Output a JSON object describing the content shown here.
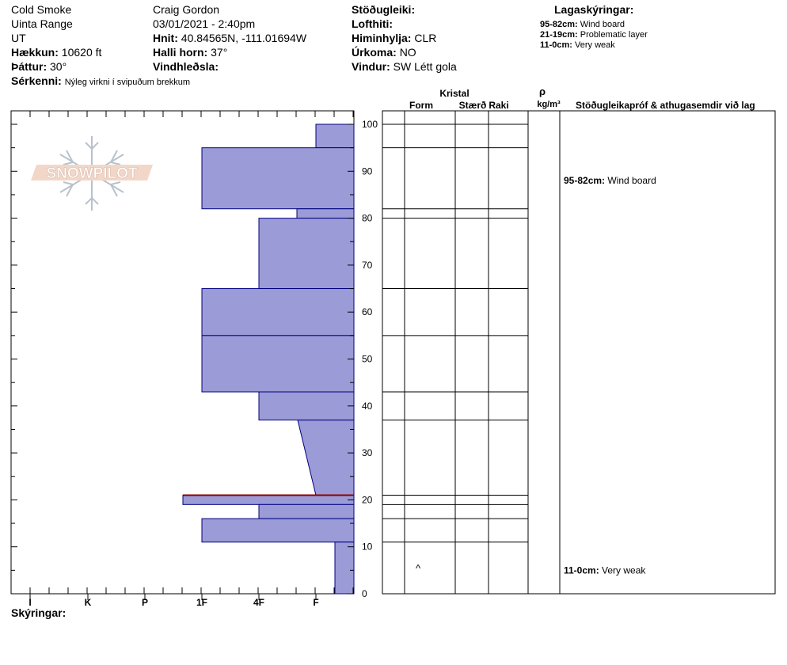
{
  "header": {
    "location": "Cold Smoke",
    "range": "Uinta Range",
    "state": "UT",
    "elevation_label": "Hækkun:",
    "elevation_value": "10620 ft",
    "aspect_label": "Þáttur:",
    "aspect_value": "30°",
    "notes_label": "Sérkenni:",
    "notes_value": "Nýleg virkni í svipuðum brekkum",
    "observer": "Craig Gordon",
    "datetime": "03/01/2021 - 2:40pm",
    "coords_label": "Hnit:",
    "coords_value": "40.84565N, -111.01694W",
    "slope_label": "Halli horn:",
    "slope_value": "37°",
    "wind_loading_label": "Vindhleðsla:",
    "stability_label": "Stöðugleiki:",
    "air_temp_label": "Lofthiti:",
    "sky_label": "Himinhylja:",
    "sky_value": "CLR",
    "precip_label": "Úrkoma:",
    "precip_value": "NO",
    "wind_label": "Vindur:",
    "wind_value": "SW Létt gola"
  },
  "legend": {
    "title": "Lagaskýringar:",
    "items": [
      {
        "range": "95-82cm:",
        "text": "Wind board"
      },
      {
        "range": "21-19cm:",
        "text": "Problematic layer"
      },
      {
        "range": "11-0cm:",
        "text": "Very weak"
      }
    ]
  },
  "columns": {
    "crystal": "Kristal",
    "form": "Form",
    "size": "Stærð",
    "moisture": "Raki",
    "density_symbol": "ρ",
    "density_unit": "kg/m³",
    "tests": "Stöðugleikapróf & athugasemdir við lag"
  },
  "comments": [
    {
      "range": "95-82cm:",
      "text": "Wind board",
      "depth": 88
    },
    {
      "range": "11-0cm:",
      "text": "Very weak",
      "depth": 5
    }
  ],
  "form_symbols": [
    {
      "symbol": "^",
      "depth": 5
    }
  ],
  "watermark": "SNOWPILOT",
  "footer_label": "Skýringar:",
  "colors": {
    "layer_fill": "#9b9bd7",
    "layer_stroke": "#000080",
    "problem_layer": "#8b0000"
  },
  "chart_data": {
    "type": "bar",
    "ylabel": "",
    "ylim": [
      0,
      100
    ],
    "yticks": [
      0,
      10,
      20,
      30,
      40,
      50,
      60,
      70,
      80,
      90,
      100
    ],
    "hardness_ticks": [
      "I",
      "K",
      "P",
      "1F",
      "4F",
      "F"
    ],
    "layers": [
      {
        "top": 100,
        "bottom": 95,
        "hardness": "F"
      },
      {
        "top": 95,
        "bottom": 82,
        "hardness": "1F"
      },
      {
        "top": 82,
        "bottom": 80,
        "hardness": "F+"
      },
      {
        "top": 80,
        "bottom": 65,
        "hardness": "4F"
      },
      {
        "top": 65,
        "bottom": 55,
        "hardness": "1F"
      },
      {
        "top": 55,
        "bottom": 43,
        "hardness": "1F"
      },
      {
        "top": 43,
        "bottom": 37,
        "hardness": "4F"
      },
      {
        "top": 37,
        "bottom": 21,
        "hardness_top": "4F+",
        "hardness_bottom": "F"
      },
      {
        "top": 21,
        "bottom": 19,
        "hardness": "1F-"
      },
      {
        "top": 19,
        "bottom": 16,
        "hardness": "4F"
      },
      {
        "top": 16,
        "bottom": 11,
        "hardness": "1F"
      },
      {
        "top": 11,
        "bottom": 0,
        "hardness": "F-"
      }
    ],
    "problematic_layer": {
      "top": 21,
      "bottom": 19
    }
  }
}
